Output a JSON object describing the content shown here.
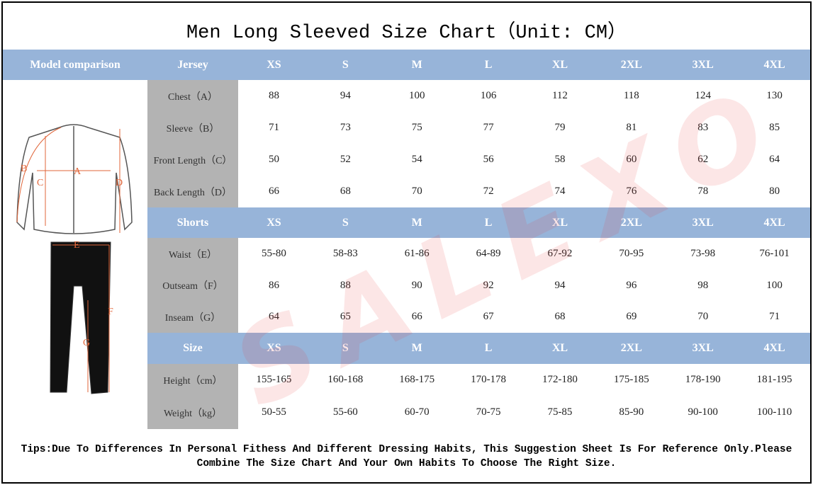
{
  "title": "Men Long Sleeved Size Chart（Unit: CM）",
  "model_header": "Model comparison",
  "sections": [
    {
      "header": "Jersey",
      "sizes": [
        "XS",
        "S",
        "M",
        "L",
        "XL",
        "2XL",
        "3XL",
        "4XL"
      ],
      "rows": [
        {
          "label": "Chest（A）",
          "values": [
            88,
            94,
            100,
            106,
            112,
            118,
            124,
            130
          ]
        },
        {
          "label": "Sleeve（B）",
          "values": [
            71,
            73,
            75,
            77,
            79,
            81,
            83,
            85
          ]
        },
        {
          "label": "Front Length（C）",
          "values": [
            50,
            52,
            54,
            56,
            58,
            60,
            62,
            64
          ]
        },
        {
          "label": "Back Length（D）",
          "values": [
            66,
            68,
            70,
            72,
            74,
            76,
            78,
            80
          ]
        }
      ]
    },
    {
      "header": "Shorts",
      "sizes": [
        "XS",
        "S",
        "M",
        "L",
        "XL",
        "2XL",
        "3XL",
        "4XL"
      ],
      "rows": [
        {
          "label": "Waist（E）",
          "values": [
            "55-80",
            "58-83",
            "61-86",
            "64-89",
            "67-92",
            "70-95",
            "73-98",
            "76-101"
          ]
        },
        {
          "label": "Outseam（F）",
          "values": [
            86,
            88,
            90,
            92,
            94,
            96,
            98,
            100
          ]
        },
        {
          "label": "Inseam（G）",
          "values": [
            64,
            65,
            66,
            67,
            68,
            69,
            70,
            71
          ]
        }
      ]
    },
    {
      "header": "Size",
      "sizes": [
        "XS",
        "S",
        "M",
        "L",
        "XL",
        "2XL",
        "3XL",
        "4XL"
      ],
      "rows": [
        {
          "label": "Height（cm）",
          "values": [
            "155-165",
            "160-168",
            "168-175",
            "170-178",
            "172-180",
            "175-185",
            "178-190",
            "181-195"
          ]
        },
        {
          "label": "Weight（kg）",
          "values": [
            "50-55",
            "55-60",
            "60-70",
            "70-75",
            "75-85",
            "85-90",
            "90-100",
            "100-110"
          ]
        }
      ]
    }
  ],
  "diagram_labels": {
    "jersey": [
      "A",
      "B",
      "C",
      "D"
    ],
    "shorts": [
      "E",
      "F",
      "G"
    ]
  },
  "watermark": "SALEXO",
  "tips": "Tips:Due To Differences In Personal Fithess And Different Dressing Habits, This Suggestion Sheet Is For Reference Only.Please Combine The Size Chart And Your Own Habits To Choose The Right Size."
}
